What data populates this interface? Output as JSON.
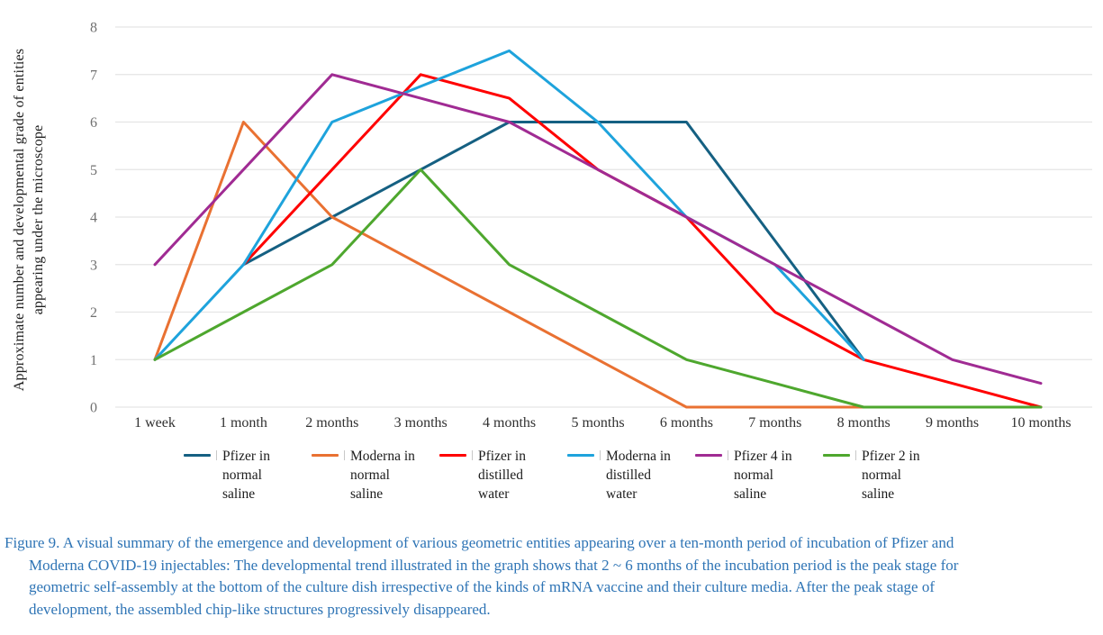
{
  "figure": {
    "caption_color": "#2E74B5",
    "caption_lines": [
      "Figure 9. A visual summary of the emergence and development of various geometric entities appearing over a ten-month period of incubation of Pfizer and",
      "Moderna COVID-19 injectables: The developmental trend illustrated in the graph shows that 2 ~ 6 months of the incubation period is the peak stage for",
      "geometric self-assembly at the bottom of the culture dish irrespective of the kinds of mRNA vaccine and their culture media. After the peak stage of",
      "development, the assembled chip-like structures progressively disappeared."
    ]
  },
  "chart_data": {
    "type": "line",
    "title": "",
    "xlabel": "",
    "ylabel_lines": [
      "Approximate number and developmental grade of entities",
      "appearing under the microscope"
    ],
    "ylim": [
      0,
      8
    ],
    "yticks": [
      0,
      1,
      2,
      3,
      4,
      5,
      6,
      7,
      8
    ],
    "grid": true,
    "legend_position": "bottom",
    "categories": [
      "1 week",
      "1 month",
      "2 months",
      "3 months",
      "4 months",
      "5 months",
      "6 months",
      "7 months",
      "8 months",
      "9 months",
      "10 months"
    ],
    "series": [
      {
        "name": "Pfizer in normal saline",
        "legend_lines": [
          "Pfizer in",
          "normal",
          "saline"
        ],
        "color": "#156082",
        "values": [
          null,
          3,
          4,
          5,
          6,
          6,
          6,
          3.5,
          1,
          null,
          null
        ]
      },
      {
        "name": "Moderna in normal saline",
        "legend_lines": [
          "Moderna in",
          "normal",
          "saline"
        ],
        "color": "#E97132",
        "values": [
          1,
          6,
          4,
          3,
          2,
          1,
          0,
          0,
          0,
          0,
          0
        ]
      },
      {
        "name": "Pfizer in distilled water",
        "legend_lines": [
          "Pfizer in",
          "distilled",
          "water"
        ],
        "color": "#FF0000",
        "values": [
          null,
          3,
          5,
          7,
          6.5,
          5,
          4,
          2,
          1,
          0.5,
          0
        ]
      },
      {
        "name": "Moderna in distilled water",
        "legend_lines": [
          "Moderna in",
          "distilled",
          "water"
        ],
        "color": "#1EA3DC",
        "values": [
          1,
          3,
          6,
          6.75,
          7.5,
          6,
          4,
          3,
          1,
          null,
          null
        ]
      },
      {
        "name": "Pfizer 4 in normal saline",
        "legend_lines": [
          "Pfizer 4 in",
          "normal",
          "saline"
        ],
        "color": "#A02B93",
        "values": [
          3,
          5,
          7,
          6.5,
          6,
          5,
          4,
          3,
          2,
          1,
          0.5
        ]
      },
      {
        "name": "Pfizer 2 in normal saline",
        "legend_lines": [
          "Pfizer 2 in",
          "normal",
          "saline"
        ],
        "color": "#4EA72E",
        "values": [
          1,
          2,
          3,
          5,
          3,
          2,
          1,
          0.5,
          0,
          0,
          0
        ]
      }
    ],
    "axis_colors": {
      "gridline": "#E5E5E5",
      "ytick_text": "#707070",
      "xtick_text": "#303030"
    }
  }
}
